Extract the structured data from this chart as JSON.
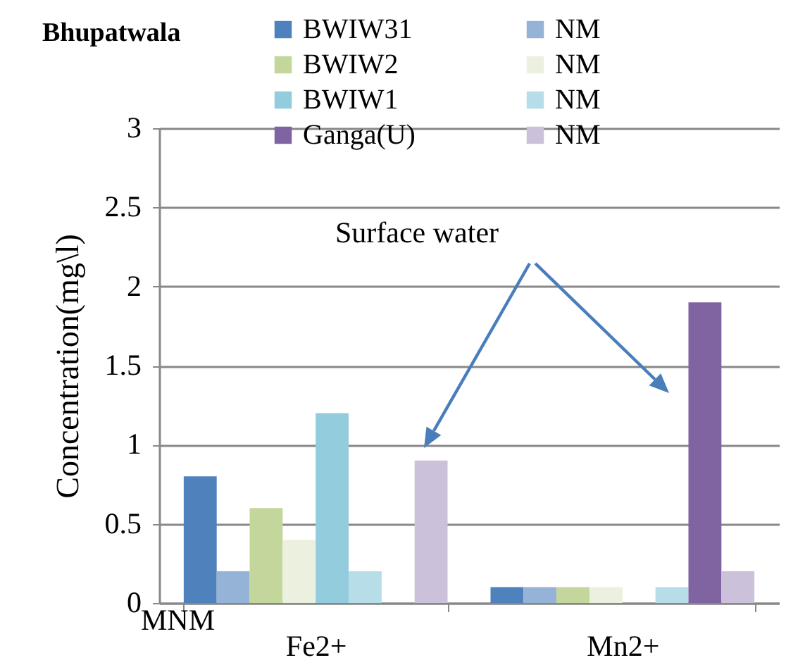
{
  "chart_data": {
    "type": "bar",
    "title": "Bhupatwala",
    "ylabel": "Concentration(mg\\l)",
    "categories": [
      "Fe2+",
      "Mn2+"
    ],
    "series": [
      {
        "name": "BWIW31",
        "color": "#4f81bd",
        "values": [
          0.8,
          0.1
        ]
      },
      {
        "name": "NM",
        "color": "#95b3d7",
        "values": [
          0.2,
          0.1
        ]
      },
      {
        "name": "BWIW2",
        "color": "#c3d69b",
        "values": [
          0.6,
          0.1
        ]
      },
      {
        "name": "NM",
        "color": "#ebf1de",
        "values": [
          0.4,
          0.1
        ]
      },
      {
        "name": "BWIW1",
        "color": "#93cddd",
        "values": [
          1.2,
          null
        ]
      },
      {
        "name": "NM",
        "color": "#b7dee8",
        "values": [
          0.2,
          0.1
        ]
      },
      {
        "name": "Ganga(U)",
        "color": "#8064a2",
        "values": [
          null,
          1.9
        ]
      },
      {
        "name": "NM",
        "color": "#ccc1da",
        "values": [
          0.9,
          0.2
        ]
      }
    ],
    "ylim": [
      0,
      3
    ],
    "yticks": [
      0,
      0.5,
      1,
      1.5,
      2,
      2.5,
      3
    ],
    "grid": "y",
    "legend": "top",
    "annotations": [
      "Surface water",
      "MNM"
    ]
  }
}
